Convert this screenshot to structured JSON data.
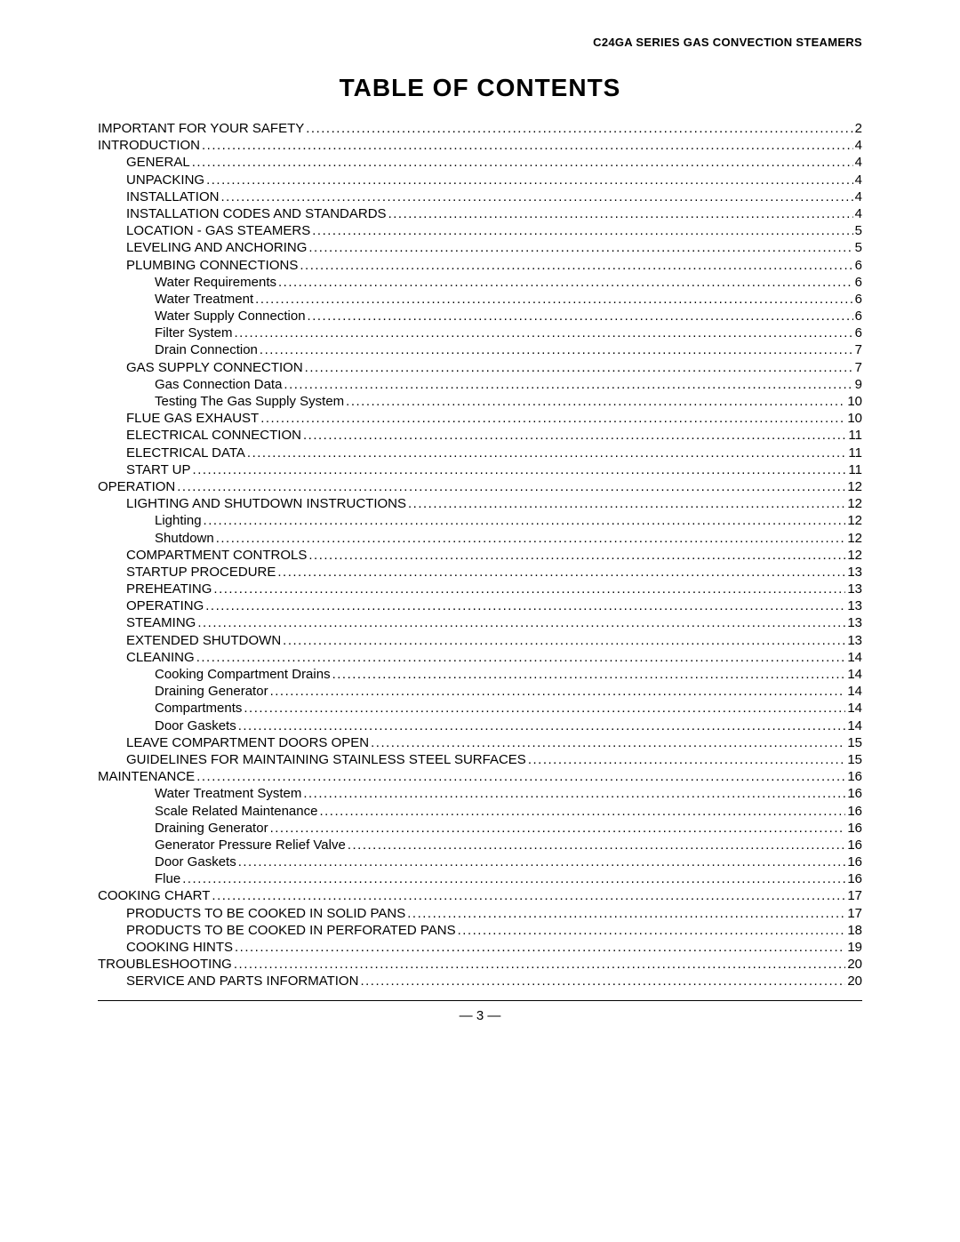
{
  "header": "C24GA SERIES GAS CONVECTION STEAMERS",
  "title": "TABLE OF CONTENTS",
  "page_number": "— 3 —",
  "entries": [
    {
      "label": "IMPORTANT FOR YOUR SAFETY",
      "page": "2",
      "indent": 0
    },
    {
      "label": "INTRODUCTION",
      "page": "4",
      "indent": 0
    },
    {
      "label": "GENERAL",
      "page": "4",
      "indent": 1
    },
    {
      "label": "UNPACKING",
      "page": "4",
      "indent": 1
    },
    {
      "label": "INSTALLATION",
      "page": "4",
      "indent": 1
    },
    {
      "label": "INSTALLATION CODES AND STANDARDS",
      "page": "4",
      "indent": 1
    },
    {
      "label": "LOCATION - GAS STEAMERS",
      "page": "5",
      "indent": 1
    },
    {
      "label": "LEVELING AND ANCHORING",
      "page": "5",
      "indent": 1
    },
    {
      "label": "PLUMBING CONNECTIONS",
      "page": "6",
      "indent": 1
    },
    {
      "label": "Water Requirements",
      "page": "6",
      "indent": 2
    },
    {
      "label": "Water Treatment",
      "page": "6",
      "indent": 2
    },
    {
      "label": "Water Supply Connection",
      "page": "6",
      "indent": 2
    },
    {
      "label": "Filter System",
      "page": "6",
      "indent": 2
    },
    {
      "label": "Drain Connection",
      "page": "7",
      "indent": 2
    },
    {
      "label": "GAS SUPPLY CONNECTION",
      "page": "7",
      "indent": 1
    },
    {
      "label": "Gas Connection Data",
      "page": "9",
      "indent": 2
    },
    {
      "label": "Testing The Gas Supply System",
      "page": "10",
      "indent": 2
    },
    {
      "label": "FLUE GAS EXHAUST",
      "page": "10",
      "indent": 1
    },
    {
      "label": "ELECTRICAL CONNECTION",
      "page": "11",
      "indent": 1
    },
    {
      "label": "ELECTRICAL DATA",
      "page": "11",
      "indent": 1
    },
    {
      "label": "START UP",
      "page": "11",
      "indent": 1
    },
    {
      "label": "OPERATION",
      "page": "12",
      "indent": 0
    },
    {
      "label": "LIGHTING AND SHUTDOWN INSTRUCTIONS",
      "page": "12",
      "indent": 1
    },
    {
      "label": "Lighting",
      "page": "12",
      "indent": 2
    },
    {
      "label": "Shutdown",
      "page": "12",
      "indent": 2
    },
    {
      "label": "COMPARTMENT CONTROLS",
      "page": "12",
      "indent": 1
    },
    {
      "label": "STARTUP PROCEDURE",
      "page": "13",
      "indent": 1
    },
    {
      "label": "PREHEATING",
      "page": "13",
      "indent": 1
    },
    {
      "label": "OPERATING",
      "page": "13",
      "indent": 1
    },
    {
      "label": "STEAMING",
      "page": "13",
      "indent": 1
    },
    {
      "label": "EXTENDED SHUTDOWN",
      "page": "13",
      "indent": 1
    },
    {
      "label": "CLEANING",
      "page": "14",
      "indent": 1
    },
    {
      "label": "Cooking Compartment Drains",
      "page": "14",
      "indent": 2
    },
    {
      "label": "Draining Generator",
      "page": "14",
      "indent": 2
    },
    {
      "label": "Compartments",
      "page": "14",
      "indent": 2
    },
    {
      "label": "Door Gaskets",
      "page": "14",
      "indent": 2
    },
    {
      "label": "LEAVE COMPARTMENT DOORS OPEN",
      "page": "15",
      "indent": 1
    },
    {
      "label": "GUIDELINES FOR MAINTAINING STAINLESS STEEL SURFACES",
      "page": "15",
      "indent": 1
    },
    {
      "label": "MAINTENANCE",
      "page": "16",
      "indent": 0
    },
    {
      "label": "Water Treatment System",
      "page": "16",
      "indent": 2
    },
    {
      "label": "Scale Related Maintenance",
      "page": "16",
      "indent": 2
    },
    {
      "label": "Draining Generator",
      "page": "16",
      "indent": 2
    },
    {
      "label": "Generator Pressure Relief Valve",
      "page": "16",
      "indent": 2
    },
    {
      "label": "Door Gaskets",
      "page": "16",
      "indent": 2
    },
    {
      "label": "Flue",
      "page": "16",
      "indent": 2
    },
    {
      "label": "COOKING CHART",
      "page": "17",
      "indent": 0
    },
    {
      "label": "PRODUCTS TO BE COOKED IN SOLID PANS",
      "page": "17",
      "indent": 1
    },
    {
      "label": "PRODUCTS TO BE COOKED IN PERFORATED PANS",
      "page": "18",
      "indent": 1
    },
    {
      "label": "COOKING HINTS",
      "page": "19",
      "indent": 1
    },
    {
      "label": "TROUBLESHOOTING",
      "page": "20",
      "indent": 0
    },
    {
      "label": "SERVICE AND PARTS INFORMATION",
      "page": "20",
      "indent": 1
    }
  ]
}
